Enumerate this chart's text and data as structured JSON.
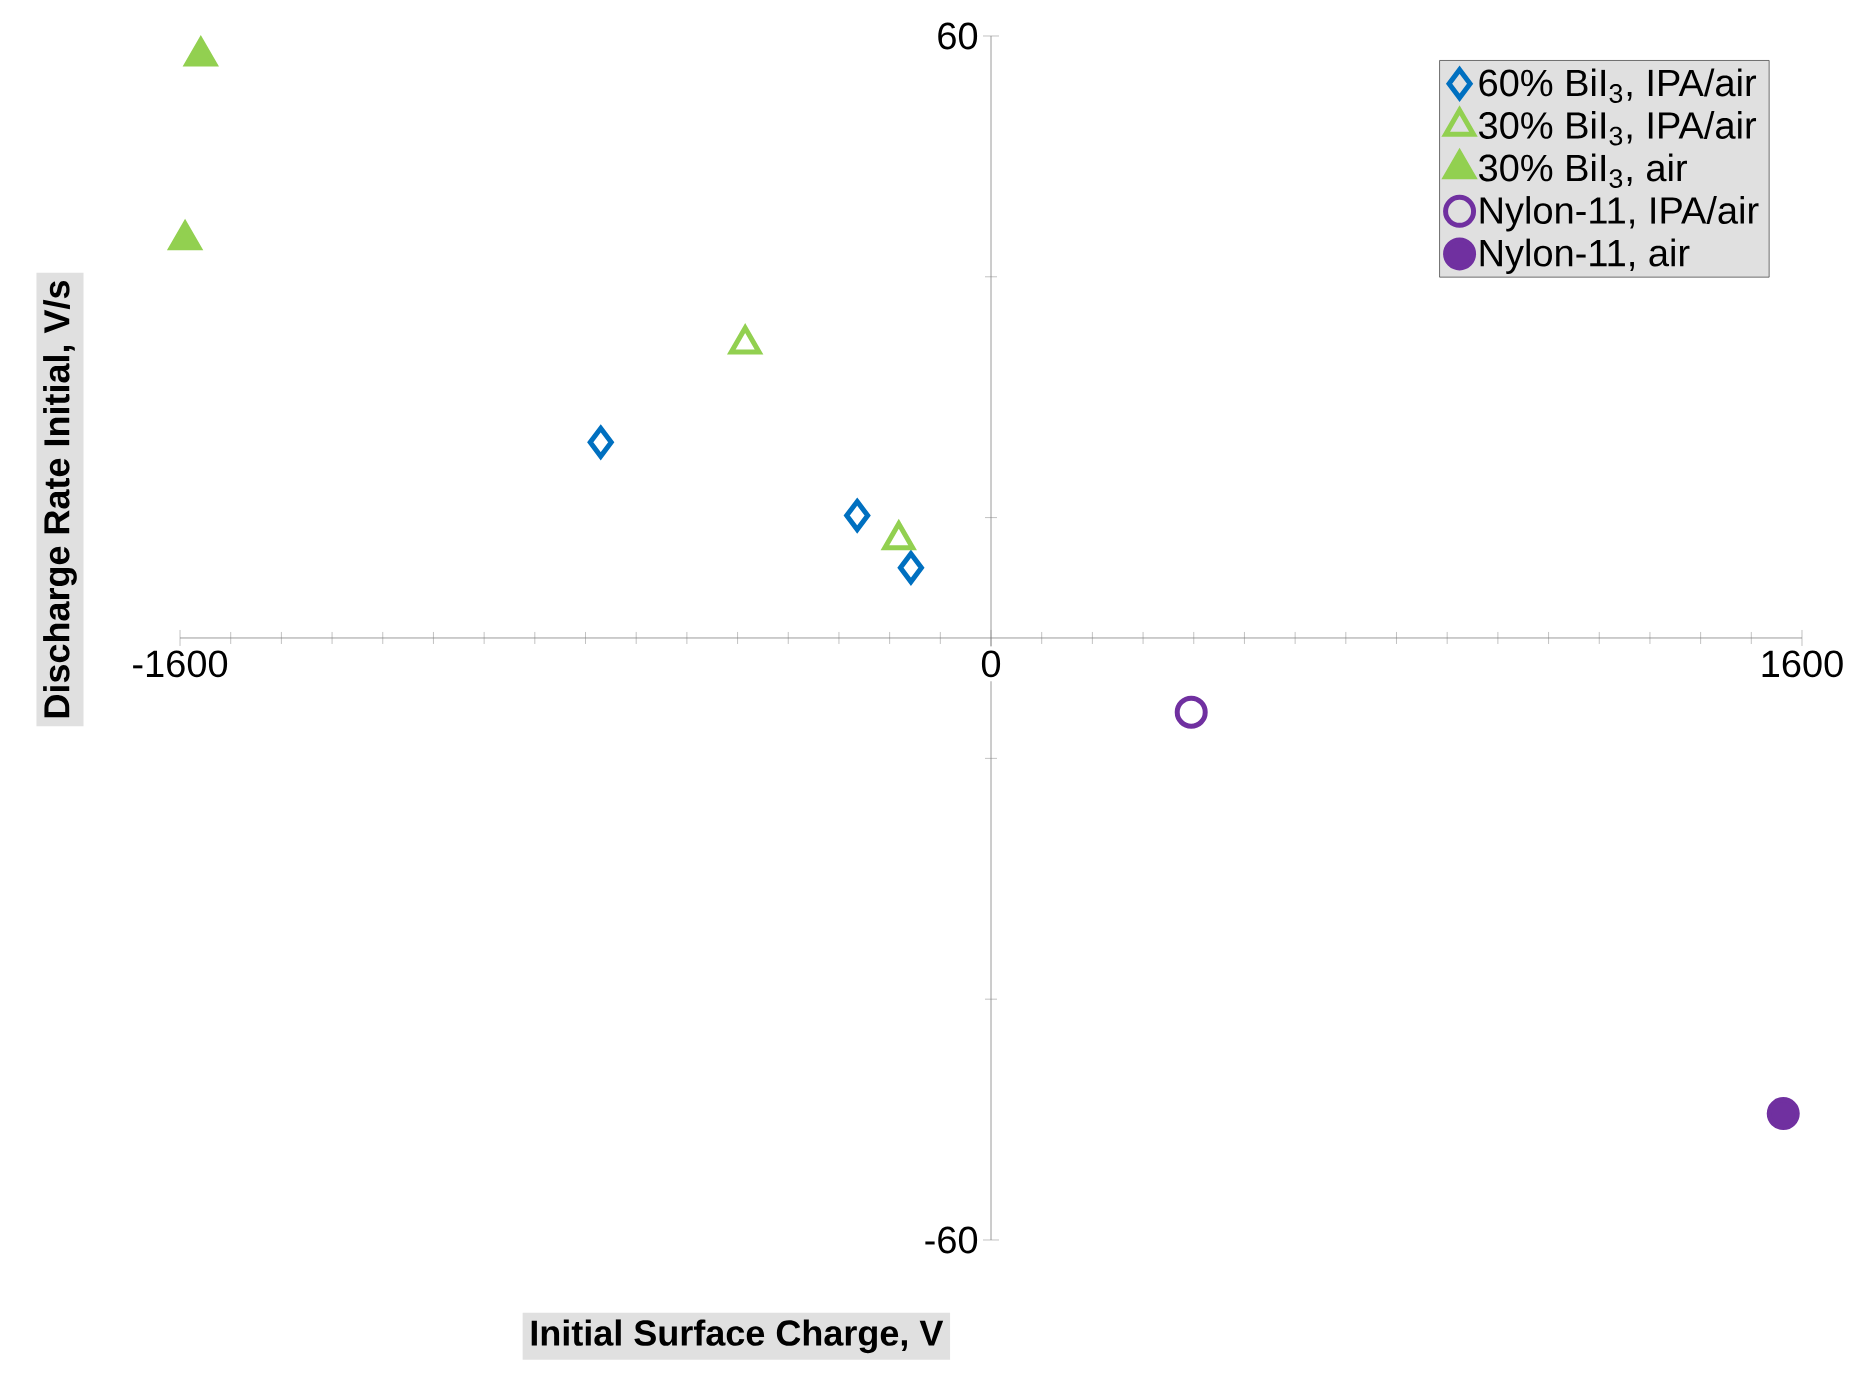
{
  "chart_data": {
    "type": "scatter",
    "xlabel": "Initial Surface Charge, V",
    "ylabel": "Discharge Rate Initial, V/s",
    "xlim": [
      -1600,
      1600
    ],
    "ylim": [
      -60,
      60
    ],
    "xticks": [
      -1600,
      0,
      1600
    ],
    "yticks": [
      -60,
      60
    ],
    "grid": false,
    "legend": "top right",
    "series": [
      {
        "name": "60% BiI$_{3}$, IPA/air",
        "color": "#0070c0",
        "marker": "diamond-open",
        "x": [
          -770,
          -264,
          -158
        ],
        "values": [
          19.5,
          12.2,
          7.0
        ]
      },
      {
        "name": "30% BiI$_{3}$, IPA/air",
        "color": "#92d050",
        "marker": "triangle-open",
        "x": [
          -485,
          -182
        ],
        "values": [
          29.3,
          9.8
        ]
      },
      {
        "name": "30% BiI$_{3}$, air",
        "color": "#92d050",
        "marker": "triangle",
        "x": [
          -1559,
          -1590
        ],
        "values": [
          58,
          39.7
        ]
      },
      {
        "name": "Nylon-11, IPA/air",
        "color": "#7030a0",
        "marker": "circle-open",
        "x": [
          395
        ],
        "values": [
          -7.4
        ]
      },
      {
        "name": "Nylon-11, air",
        "color": "#7030a0",
        "marker": "circle",
        "x": [
          1563
        ],
        "values": [
          -47.4
        ]
      }
    ]
  }
}
